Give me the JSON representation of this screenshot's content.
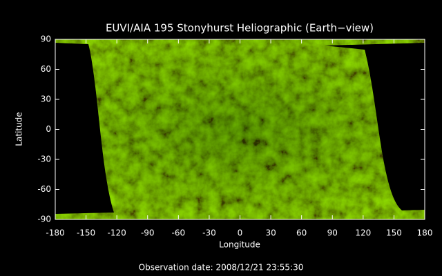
{
  "chart_data": {
    "type": "image",
    "title": "EUVI/AIA 195 Stonyhurst Heliographic (Earth−view)",
    "xlabel": "Longitude",
    "ylabel": "Latitude",
    "footer": "Observation date: 2008/12/21 23:55:30",
    "xlim": [
      -180,
      180
    ],
    "xticks": [
      -180,
      -150,
      -120,
      -90,
      -60,
      -30,
      0,
      30,
      60,
      90,
      120,
      150,
      180
    ],
    "ylim": [
      -90,
      90
    ],
    "yticks": [
      -90,
      -60,
      -30,
      0,
      30,
      60,
      90
    ]
  }
}
